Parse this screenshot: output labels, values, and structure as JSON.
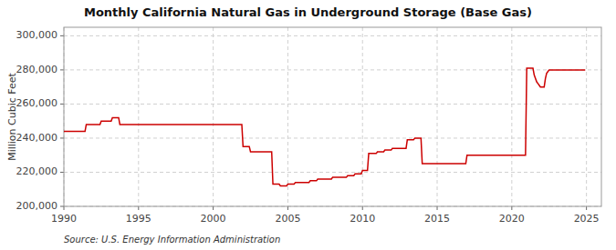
{
  "chart_data": {
    "type": "line",
    "title": "Monthly California Natural Gas in Underground Storage (Base Gas)",
    "y_label": "Million Cubic Feet",
    "annotations": [
      "Source: U.S. Energy Information Administration"
    ],
    "color": "#cc0000",
    "grid": true,
    "xlim": [
      1990,
      2026
    ],
    "xticks": [
      1990,
      1995,
      2000,
      2005,
      2010,
      2015,
      2020,
      2025
    ],
    "ylim": [
      200000,
      305000
    ],
    "yticks": [
      {
        "value": 200000,
        "label": "200,000"
      },
      {
        "value": 220000,
        "label": "220,000"
      },
      {
        "value": 240000,
        "label": "240,000"
      },
      {
        "value": 260000,
        "label": "260,000"
      },
      {
        "value": 280000,
        "label": "280,000"
      },
      {
        "value": 300000,
        "label": "300,000"
      }
    ],
    "x": [
      1990.0,
      1990.083,
      1990.167,
      1990.25,
      1990.333,
      1990.417,
      1990.5,
      1990.583,
      1990.667,
      1990.75,
      1990.833,
      1990.917,
      1991.0,
      1991.083,
      1991.167,
      1991.25,
      1991.333,
      1991.417,
      1991.5,
      1991.583,
      1991.667,
      1991.75,
      1991.833,
      1991.917,
      1992.0,
      1992.083,
      1992.167,
      1992.25,
      1992.333,
      1992.417,
      1992.5,
      1992.583,
      1992.667,
      1992.75,
      1992.833,
      1992.917,
      1993.0,
      1993.083,
      1993.167,
      1993.25,
      1993.333,
      1993.417,
      1993.5,
      1993.583,
      1993.667,
      1993.75,
      1993.833,
      1993.917,
      1994.0,
      1994.083,
      1994.167,
      1994.25,
      1994.333,
      1994.417,
      1994.5,
      1994.583,
      1994.667,
      1994.75,
      1994.833,
      1994.917,
      1995.0,
      1995.083,
      1995.167,
      1995.25,
      1995.333,
      1995.417,
      1995.5,
      1995.583,
      1995.667,
      1995.75,
      1995.833,
      1995.917,
      1996.0,
      1996.083,
      1996.167,
      1996.25,
      1996.333,
      1996.417,
      1996.5,
      1996.583,
      1996.667,
      1996.75,
      1996.833,
      1996.917,
      1997.0,
      1997.083,
      1997.167,
      1997.25,
      1997.333,
      1997.417,
      1997.5,
      1997.583,
      1997.667,
      1997.75,
      1997.833,
      1997.917,
      1998.0,
      1998.083,
      1998.167,
      1998.25,
      1998.333,
      1998.417,
      1998.5,
      1998.583,
      1998.667,
      1998.75,
      1998.833,
      1998.917,
      1999.0,
      1999.083,
      1999.167,
      1999.25,
      1999.333,
      1999.417,
      1999.5,
      1999.583,
      1999.667,
      1999.75,
      1999.833,
      1999.917,
      2000.0,
      2000.083,
      2000.167,
      2000.25,
      2000.333,
      2000.417,
      2000.5,
      2000.583,
      2000.667,
      2000.75,
      2000.833,
      2000.917,
      2001.0,
      2001.083,
      2001.167,
      2001.25,
      2001.333,
      2001.417,
      2001.5,
      2001.583,
      2001.667,
      2001.75,
      2001.833,
      2001.917,
      2002.0,
      2002.083,
      2002.167,
      2002.25,
      2002.333,
      2002.417,
      2002.5,
      2002.583,
      2002.667,
      2002.75,
      2002.833,
      2002.917,
      2003.0,
      2003.083,
      2003.167,
      2003.25,
      2003.333,
      2003.417,
      2003.5,
      2003.583,
      2003.667,
      2003.75,
      2003.833,
      2003.917,
      2004.0,
      2004.083,
      2004.167,
      2004.25,
      2004.333,
      2004.417,
      2004.5,
      2004.583,
      2004.667,
      2004.75,
      2004.833,
      2004.917,
      2005.0,
      2005.083,
      2005.167,
      2005.25,
      2005.333,
      2005.417,
      2005.5,
      2005.583,
      2005.667,
      2005.75,
      2005.833,
      2005.917,
      2006.0,
      2006.083,
      2006.167,
      2006.25,
      2006.333,
      2006.417,
      2006.5,
      2006.583,
      2006.667,
      2006.75,
      2006.833,
      2006.917,
      2007.0,
      2007.083,
      2007.167,
      2007.25,
      2007.333,
      2007.417,
      2007.5,
      2007.583,
      2007.667,
      2007.75,
      2007.833,
      2007.917,
      2008.0,
      2008.083,
      2008.167,
      2008.25,
      2008.333,
      2008.417,
      2008.5,
      2008.583,
      2008.667,
      2008.75,
      2008.833,
      2008.917,
      2009.0,
      2009.083,
      2009.167,
      2009.25,
      2009.333,
      2009.417,
      2009.5,
      2009.583,
      2009.667,
      2009.75,
      2009.833,
      2009.917,
      2010.0,
      2010.083,
      2010.167,
      2010.25,
      2010.333,
      2010.417,
      2010.5,
      2010.583,
      2010.667,
      2010.75,
      2010.833,
      2010.917,
      2011.0,
      2011.083,
      2011.167,
      2011.25,
      2011.333,
      2011.417,
      2011.5,
      2011.583,
      2011.667,
      2011.75,
      2011.833,
      2011.917,
      2012.0,
      2012.083,
      2012.167,
      2012.25,
      2012.333,
      2012.417,
      2012.5,
      2012.583,
      2012.667,
      2012.75,
      2012.833,
      2012.917,
      2013.0,
      2013.083,
      2013.167,
      2013.25,
      2013.333,
      2013.417,
      2013.5,
      2013.583,
      2013.667,
      2013.75,
      2013.833,
      2013.917,
      2014.0,
      2014.083,
      2014.167,
      2014.25,
      2014.333,
      2014.417,
      2014.5,
      2014.583,
      2014.667,
      2014.75,
      2014.833,
      2014.917,
      2015.0,
      2015.083,
      2015.167,
      2015.25,
      2015.333,
      2015.417,
      2015.5,
      2015.583,
      2015.667,
      2015.75,
      2015.833,
      2015.917,
      2016.0,
      2016.083,
      2016.167,
      2016.25,
      2016.333,
      2016.417,
      2016.5,
      2016.583,
      2016.667,
      2016.75,
      2016.833,
      2016.917,
      2017.0,
      2017.083,
      2017.167,
      2017.25,
      2017.333,
      2017.417,
      2017.5,
      2017.583,
      2017.667,
      2017.75,
      2017.833,
      2017.917,
      2018.0,
      2018.083,
      2018.167,
      2018.25,
      2018.333,
      2018.417,
      2018.5,
      2018.583,
      2018.667,
      2018.75,
      2018.833,
      2018.917,
      2019.0,
      2019.083,
      2019.167,
      2019.25,
      2019.333,
      2019.417,
      2019.5,
      2019.583,
      2019.667,
      2019.75,
      2019.833,
      2019.917,
      2020.0,
      2020.083,
      2020.167,
      2020.25,
      2020.333,
      2020.417,
      2020.5,
      2020.583,
      2020.667,
      2020.75,
      2020.833,
      2020.917,
      2021.0,
      2021.083,
      2021.167,
      2021.25,
      2021.333,
      2021.417,
      2021.5,
      2021.583,
      2021.667,
      2021.75,
      2021.833,
      2021.917,
      2022.0,
      2022.083,
      2022.167,
      2022.25,
      2022.333,
      2022.417,
      2022.5,
      2022.583,
      2022.667,
      2022.75,
      2022.833,
      2022.917,
      2023.0,
      2023.083,
      2023.167,
      2023.25,
      2023.333,
      2023.417,
      2023.5,
      2023.583,
      2023.667,
      2023.75,
      2023.833,
      2023.917,
      2024.0,
      2024.083,
      2024.167,
      2024.25,
      2024.333,
      2024.417,
      2024.5,
      2024.583,
      2024.667,
      2024.75,
      2024.833,
      2024.917
    ],
    "values": [
      244000,
      244000,
      244000,
      244000,
      244000,
      244000,
      244000,
      244000,
      244000,
      244000,
      244000,
      244000,
      244000,
      244000,
      244000,
      244000,
      244000,
      244000,
      248000,
      248000,
      248000,
      248000,
      248000,
      248000,
      248000,
      248000,
      248000,
      248000,
      248000,
      248000,
      250000,
      250000,
      250000,
      250000,
      250000,
      250000,
      250000,
      250000,
      250000,
      252000,
      252000,
      252000,
      252000,
      252000,
      252000,
      248000,
      248000,
      248000,
      248000,
      248000,
      248000,
      248000,
      248000,
      248000,
      248000,
      248000,
      248000,
      248000,
      248000,
      248000,
      248000,
      248000,
      248000,
      248000,
      248000,
      248000,
      248000,
      248000,
      248000,
      248000,
      248000,
      248000,
      248000,
      248000,
      248000,
      248000,
      248000,
      248000,
      248000,
      248000,
      248000,
      248000,
      248000,
      248000,
      248000,
      248000,
      248000,
      248000,
      248000,
      248000,
      248000,
      248000,
      248000,
      248000,
      248000,
      248000,
      248000,
      248000,
      248000,
      248000,
      248000,
      248000,
      248000,
      248000,
      248000,
      248000,
      248000,
      248000,
      248000,
      248000,
      248000,
      248000,
      248000,
      248000,
      248000,
      248000,
      248000,
      248000,
      248000,
      248000,
      248000,
      248000,
      248000,
      248000,
      248000,
      248000,
      248000,
      248000,
      248000,
      248000,
      248000,
      248000,
      248000,
      248000,
      248000,
      248000,
      248000,
      248000,
      248000,
      248000,
      248000,
      248000,
      248000,
      248000,
      235000,
      235000,
      235000,
      235000,
      235000,
      235000,
      232000,
      232000,
      232000,
      232000,
      232000,
      232000,
      232000,
      232000,
      232000,
      232000,
      232000,
      232000,
      232000,
      232000,
      232000,
      232000,
      232000,
      232000,
      213000,
      213000,
      213000,
      213000,
      213000,
      213000,
      212000,
      212000,
      212000,
      212000,
      212000,
      212000,
      213000,
      213000,
      213000,
      213000,
      213000,
      213000,
      214000,
      214000,
      214000,
      214000,
      214000,
      214000,
      214000,
      214000,
      214000,
      214000,
      214000,
      214000,
      215000,
      215000,
      215000,
      215000,
      215000,
      215000,
      216000,
      216000,
      216000,
      216000,
      216000,
      216000,
      216000,
      216000,
      216000,
      216000,
      216000,
      216000,
      217000,
      217000,
      217000,
      217000,
      217000,
      217000,
      217000,
      217000,
      217000,
      217000,
      217000,
      217000,
      218000,
      218000,
      218000,
      218000,
      218000,
      218000,
      219000,
      219000,
      219000,
      219000,
      219000,
      219000,
      221000,
      221000,
      221000,
      221000,
      221000,
      231000,
      231000,
      231000,
      231000,
      231000,
      231000,
      231000,
      232000,
      232000,
      232000,
      232000,
      232000,
      232000,
      233000,
      233000,
      233000,
      233000,
      233000,
      233000,
      234000,
      234000,
      234000,
      234000,
      234000,
      234000,
      234000,
      234000,
      234000,
      234000,
      234000,
      234000,
      239000,
      239000,
      239000,
      239000,
      239000,
      239000,
      240000,
      240000,
      240000,
      240000,
      240000,
      240000,
      225000,
      225000,
      225000,
      225000,
      225000,
      225000,
      225000,
      225000,
      225000,
      225000,
      225000,
      225000,
      225000,
      225000,
      225000,
      225000,
      225000,
      225000,
      225000,
      225000,
      225000,
      225000,
      225000,
      225000,
      225000,
      225000,
      225000,
      225000,
      225000,
      225000,
      225000,
      225000,
      225000,
      225000,
      225000,
      225000,
      230000,
      230000,
      230000,
      230000,
      230000,
      230000,
      230000,
      230000,
      230000,
      230000,
      230000,
      230000,
      230000,
      230000,
      230000,
      230000,
      230000,
      230000,
      230000,
      230000,
      230000,
      230000,
      230000,
      230000,
      230000,
      230000,
      230000,
      230000,
      230000,
      230000,
      230000,
      230000,
      230000,
      230000,
      230000,
      230000,
      230000,
      230000,
      230000,
      230000,
      230000,
      230000,
      230000,
      230000,
      230000,
      230000,
      230000,
      230000,
      281000,
      281000,
      281000,
      281000,
      281000,
      281000,
      277000,
      275000,
      273000,
      272000,
      271000,
      270000,
      270000,
      270000,
      270000,
      275000,
      278000,
      279000,
      280000,
      280000,
      280000,
      280000,
      280000,
      280000,
      280000,
      280000,
      280000,
      280000,
      280000,
      280000,
      280000,
      280000,
      280000,
      280000,
      280000,
      280000,
      280000,
      280000,
      280000,
      280000,
      280000,
      280000,
      280000,
      280000,
      280000,
      280000,
      280000,
      280000
    ]
  }
}
